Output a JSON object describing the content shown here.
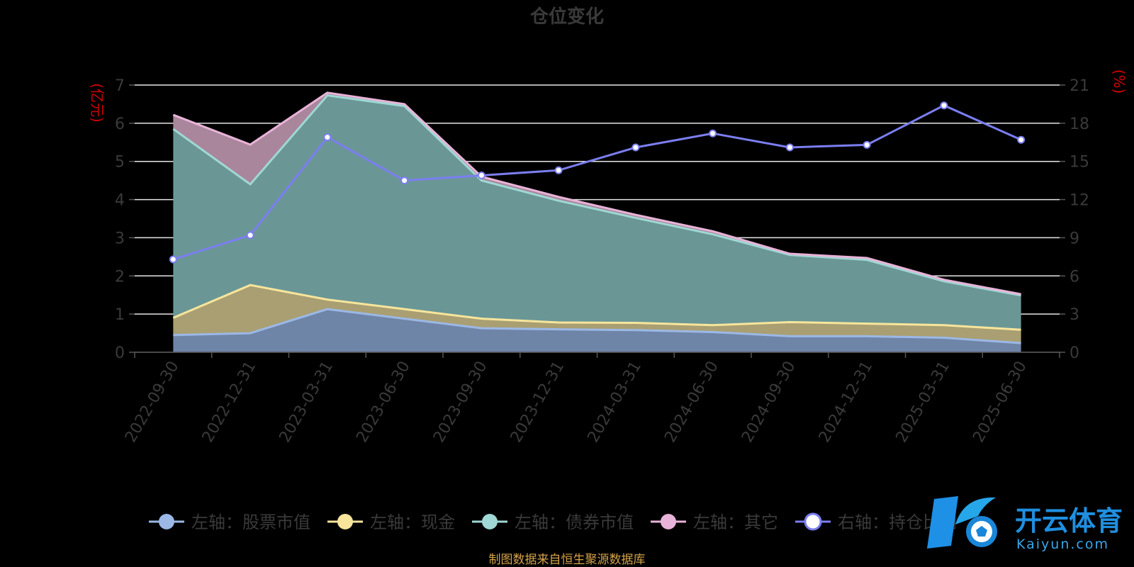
{
  "chart_data": {
    "type": "area",
    "title": "仓位变化",
    "left_unit": "(亿元)",
    "right_unit": "(%)",
    "categories": [
      "2022-09-30",
      "2022-12-31",
      "2023-03-31",
      "2023-06-30",
      "2023-09-30",
      "2023-12-31",
      "2024-03-31",
      "2024-06-30",
      "2024-09-30",
      "2024-12-31",
      "2025-03-31",
      "2025-06-30"
    ],
    "left_axis": {
      "min": 0,
      "max": 7,
      "ticks": [
        0,
        1,
        2,
        3,
        4,
        5,
        6,
        7
      ]
    },
    "right_axis": {
      "min": 0,
      "max": 21,
      "ticks": [
        0,
        3,
        6,
        9,
        12,
        15,
        18,
        21
      ]
    },
    "grid": true,
    "stacked": true,
    "series": [
      {
        "name": "左轴：股票市值",
        "axis": "left",
        "color": "#9bb8e6",
        "fill": "#6f85a8",
        "values": [
          0.45,
          0.5,
          1.13,
          0.88,
          0.63,
          0.6,
          0.58,
          0.53,
          0.42,
          0.42,
          0.38,
          0.24
        ]
      },
      {
        "name": "左轴：现金",
        "axis": "left",
        "color": "#f7e59c",
        "fill": "#a99f72",
        "values": [
          0.45,
          1.26,
          0.25,
          0.25,
          0.25,
          0.18,
          0.19,
          0.18,
          0.37,
          0.33,
          0.33,
          0.35
        ]
      },
      {
        "name": "左轴：债券市值",
        "axis": "left",
        "color": "#9fd8d4",
        "fill": "#6a9796",
        "values": [
          4.95,
          2.64,
          5.35,
          5.32,
          3.62,
          3.19,
          2.75,
          2.38,
          1.76,
          1.67,
          1.15,
          0.9
        ]
      },
      {
        "name": "左轴：其它",
        "axis": "left",
        "color": "#e8b3d8",
        "fill": "#a9869b",
        "values": [
          0.37,
          1.04,
          0.07,
          0.05,
          0.1,
          0.1,
          0.08,
          0.08,
          0.03,
          0.05,
          0.04,
          0.03
        ]
      },
      {
        "name": "右轴：持仓比例",
        "axis": "right",
        "type": "line",
        "color": "#7b7ef0",
        "values": [
          7.3,
          9.2,
          16.9,
          13.5,
          13.9,
          14.3,
          16.1,
          17.2,
          16.1,
          16.3,
          19.4,
          16.7
        ]
      }
    ],
    "legend_position": "bottom",
    "source_note": "制图数据来自恒生聚源数据库"
  },
  "watermark": {
    "brand_cn": "开云体育",
    "brand_en": "Kaiyun.com"
  }
}
